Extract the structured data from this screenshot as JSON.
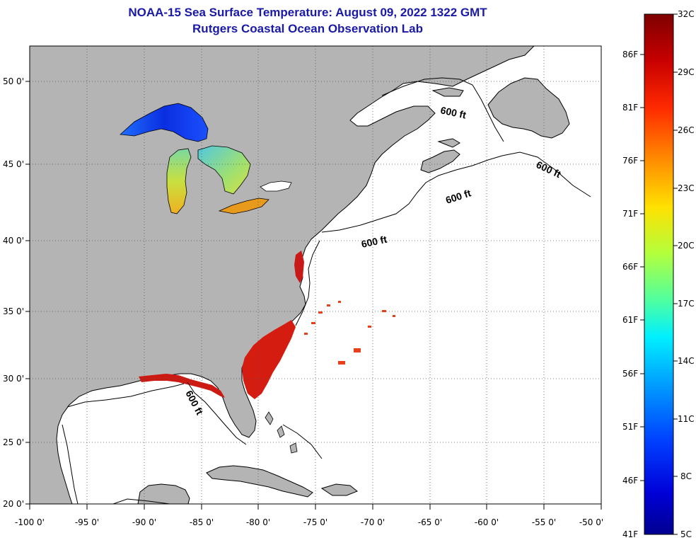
{
  "title": {
    "line1": "NOAA-15 Sea Surface Temperature:  August 09, 2022 1322 GMT",
    "line2": "Rutgers Coastal Ocean Observation Lab"
  },
  "axes": {
    "lat_labels": [
      "50 0'",
      "45 0'",
      "40 0'",
      "35 0'",
      "30 0'",
      "25 0'",
      "20 0'"
    ],
    "lon_labels": [
      "-100 0'",
      "-95 0'",
      "-90 0'",
      "-85 0'",
      "-80 0'",
      "-75 0'",
      "-70 0'",
      "-65 0'",
      "-60 0'",
      "-55 0'",
      "-50 0'"
    ]
  },
  "contour_labels": [
    "600 ft",
    "600 ft",
    "600 ft",
    "600 ft",
    "600 ft"
  ],
  "colorbar": {
    "fahrenheit_labels": [
      "86F",
      "81F",
      "76F",
      "71F",
      "66F",
      "61F",
      "56F",
      "51F",
      "46F",
      "41F"
    ],
    "celsius_labels": [
      "32C",
      "29C",
      "26C",
      "23C",
      "20C",
      "17C",
      "14C",
      "11C",
      "8C",
      "5C"
    ],
    "colors": [
      "#7f0000",
      "#c80000",
      "#ff3000",
      "#ff8c00",
      "#ffd800",
      "#c8ff28",
      "#5aff9a",
      "#00e8ff",
      "#0090ff",
      "#0030ff",
      "#0000c8",
      "#00008c"
    ]
  },
  "colors": {
    "land": "#b4b4b4",
    "ocean": "#ffffff",
    "title": "#1a1aa6"
  }
}
